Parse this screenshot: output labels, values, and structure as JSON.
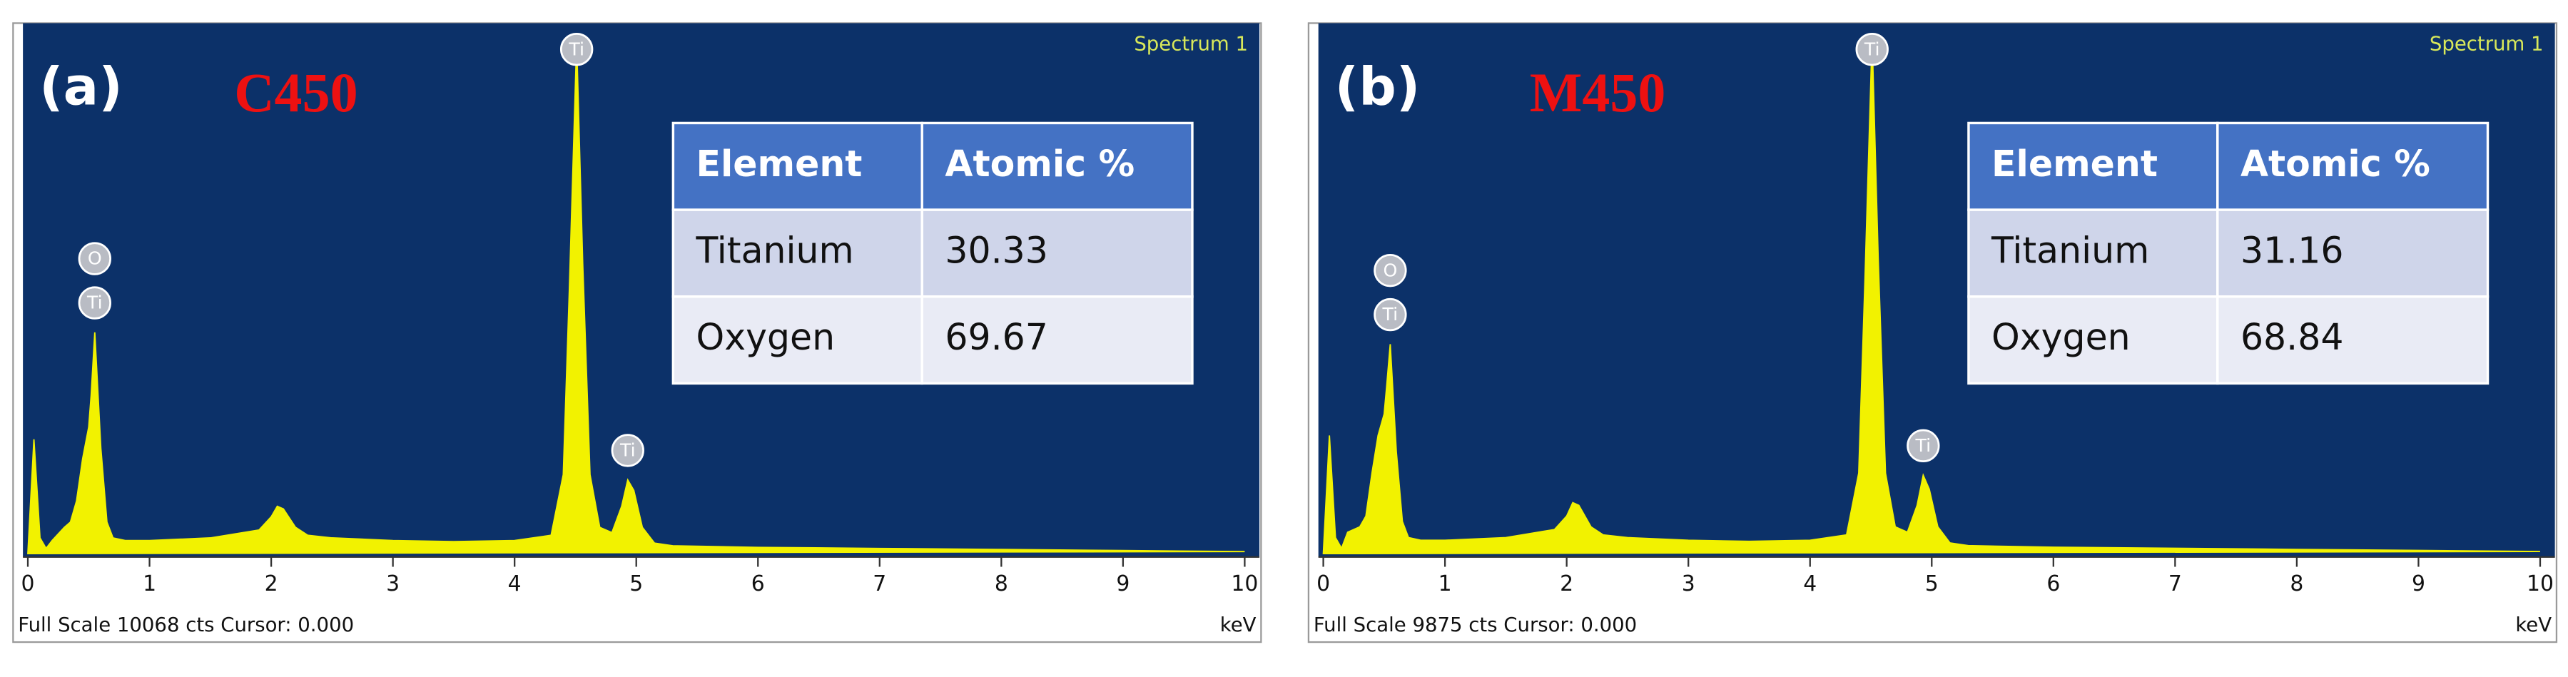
{
  "chart_data": [
    {
      "type": "area",
      "panel_label": "(a)",
      "title": "C450",
      "spectrum_label": "Spectrum 1",
      "footer": "Full Scale 10068 cts Cursor: 0.000",
      "xlabel": "keV",
      "color": "#f2f200",
      "xlim": [
        0,
        10
      ],
      "xticks": [
        0,
        1,
        2,
        3,
        4,
        5,
        6,
        7,
        8,
        9,
        10
      ],
      "ylim": [
        0,
        10068
      ],
      "x": [
        0,
        0.05,
        0.1,
        0.15,
        0.2,
        0.3,
        0.35,
        0.4,
        0.45,
        0.5,
        0.52,
        0.55,
        0.6,
        0.65,
        0.7,
        0.8,
        1.0,
        1.5,
        1.9,
        2.0,
        2.05,
        2.1,
        2.2,
        2.3,
        2.5,
        3.0,
        3.5,
        4.0,
        4.3,
        4.4,
        4.45,
        4.51,
        4.56,
        4.62,
        4.7,
        4.8,
        4.88,
        4.93,
        4.98,
        5.05,
        5.15,
        5.3,
        6,
        7,
        8,
        9,
        10
      ],
      "values": [
        0,
        2170,
        300,
        100,
        250,
        500,
        600,
        1000,
        1800,
        2400,
        3000,
        4200,
        2000,
        600,
        300,
        250,
        250,
        300,
        450,
        700,
        900,
        850,
        500,
        350,
        300,
        250,
        230,
        250,
        350,
        1500,
        5000,
        9700,
        5500,
        1500,
        500,
        400,
        900,
        1400,
        1200,
        500,
        200,
        150,
        120,
        100,
        80,
        60,
        40
      ],
      "annotations": [
        {
          "text": "Ti",
          "x": 0.55
        },
        {
          "text": "O",
          "x": 0.55
        },
        {
          "text": "Ti",
          "x": 4.51
        },
        {
          "text": "Ti",
          "x": 4.93
        }
      ],
      "table": {
        "header": [
          "Element",
          "Atomic %"
        ],
        "rows": [
          [
            "Titanium",
            30.33
          ],
          [
            "Oxygen",
            69.67
          ]
        ]
      }
    },
    {
      "type": "area",
      "panel_label": "(b)",
      "title": "M450",
      "spectrum_label": "Spectrum 1",
      "footer": "Full Scale 9875 cts Cursor: 0.000",
      "xlabel": "keV",
      "color": "#f2f200",
      "xlim": [
        0,
        10
      ],
      "xticks": [
        0,
        1,
        2,
        3,
        4,
        5,
        6,
        7,
        8,
        9,
        10
      ],
      "ylim": [
        0,
        9875
      ],
      "x": [
        0,
        0.05,
        0.1,
        0.15,
        0.2,
        0.3,
        0.35,
        0.4,
        0.45,
        0.5,
        0.52,
        0.55,
        0.6,
        0.65,
        0.7,
        0.8,
        1.0,
        1.5,
        1.9,
        2.0,
        2.05,
        2.1,
        2.2,
        2.3,
        2.5,
        3.0,
        3.5,
        4.0,
        4.3,
        4.4,
        4.45,
        4.51,
        4.56,
        4.62,
        4.7,
        4.8,
        4.88,
        4.93,
        4.98,
        5.05,
        5.15,
        5.3,
        6,
        7,
        8,
        9,
        10
      ],
      "values": [
        0,
        2200,
        300,
        100,
        400,
        500,
        700,
        1500,
        2200,
        2600,
        3100,
        3900,
        1900,
        600,
        300,
        250,
        250,
        300,
        450,
        700,
        950,
        900,
        500,
        350,
        300,
        250,
        230,
        250,
        350,
        1500,
        5000,
        9600,
        5500,
        1500,
        500,
        400,
        900,
        1460,
        1200,
        500,
        200,
        150,
        120,
        100,
        80,
        60,
        40
      ],
      "annotations": [
        {
          "text": "Ti",
          "x": 0.55
        },
        {
          "text": "O",
          "x": 0.55
        },
        {
          "text": "Ti",
          "x": 4.51
        },
        {
          "text": "Ti",
          "x": 4.93
        }
      ],
      "table": {
        "header": [
          "Element",
          "Atomic %"
        ],
        "rows": [
          [
            "Titanium",
            31.16
          ],
          [
            "Oxygen",
            68.84
          ]
        ]
      }
    }
  ]
}
